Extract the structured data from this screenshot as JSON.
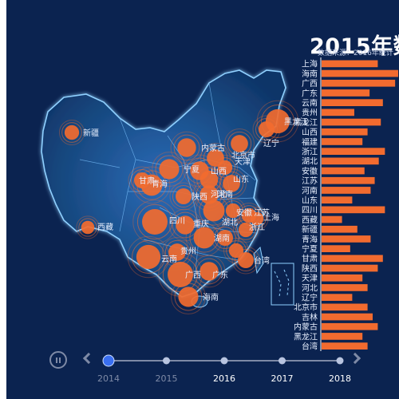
{
  "title": "2015年数",
  "subtitle": "数据来源：2016年统计",
  "timeline": {
    "years": [
      "2014",
      "2015",
      "2016",
      "2017",
      "2018"
    ],
    "current": "2014",
    "highlighted": [
      "2016",
      "2017",
      "2018"
    ]
  },
  "colors": {
    "background": "#0b2350",
    "land": "#1a4f93",
    "border": "#8fd0ff",
    "bubble": "#f26b2f",
    "bar": "#f26b2f",
    "timeline_active": "#3a6ff0"
  },
  "chart_data": [
    {
      "type": "map-bubble",
      "points": [
        {
          "name": "新疆",
          "value": 12
        },
        {
          "name": "西藏",
          "value": 10
        },
        {
          "name": "内蒙古",
          "value": 18
        },
        {
          "name": "辽宁",
          "value": 16
        },
        {
          "name": "黑龙江",
          "value": 26
        },
        {
          "name": "吉林",
          "value": 14
        },
        {
          "name": "北京市",
          "value": 16
        },
        {
          "name": "天津",
          "value": 12
        },
        {
          "name": "宁夏",
          "value": 20
        },
        {
          "name": "山西",
          "value": 18
        },
        {
          "name": "河北",
          "value": 17
        },
        {
          "name": "山东",
          "value": 16
        },
        {
          "name": "陕西",
          "value": 14
        },
        {
          "name": "河南",
          "value": 18
        },
        {
          "name": "甘肃",
          "value": 14
        },
        {
          "name": "青海",
          "value": 22
        },
        {
          "name": "四川",
          "value": 28
        },
        {
          "name": "重庆",
          "value": 18
        },
        {
          "name": "湖北",
          "value": 22
        },
        {
          "name": "安徽",
          "value": 12
        },
        {
          "name": "江苏",
          "value": 12
        },
        {
          "name": "上海",
          "value": 10
        },
        {
          "name": "浙江",
          "value": 12
        },
        {
          "name": "湖南",
          "value": 22
        },
        {
          "name": "江西",
          "value": 14
        },
        {
          "name": "福建",
          "value": 12
        },
        {
          "name": "云南",
          "value": 26
        },
        {
          "name": "贵州",
          "value": 16
        },
        {
          "name": "广西",
          "value": 28
        },
        {
          "name": "广东",
          "value": 18
        },
        {
          "name": "台湾",
          "value": 14
        },
        {
          "name": "海南",
          "value": 20
        }
      ]
    },
    {
      "type": "bar",
      "orientation": "horizontal",
      "categories": [
        "上海",
        "海南",
        "广西",
        "广东",
        "云南",
        "贵州",
        "黑龙江",
        "山西",
        "福建",
        "浙江",
        "湖北",
        "安徽",
        "江苏",
        "河南",
        "山东",
        "四川",
        "西藏",
        "新疆",
        "青海",
        "宁夏",
        "甘肃",
        "陕西",
        "天津",
        "河北",
        "辽宁",
        "北京市",
        "吉林",
        "内蒙古",
        "黑龙江",
        "台湾"
      ],
      "values": [
        55,
        75,
        72,
        47,
        60,
        32,
        58,
        45,
        40,
        62,
        56,
        42,
        52,
        48,
        30,
        62,
        20,
        35,
        48,
        28,
        60,
        55,
        40,
        45,
        30,
        45,
        50,
        55,
        40,
        45
      ]
    }
  ]
}
